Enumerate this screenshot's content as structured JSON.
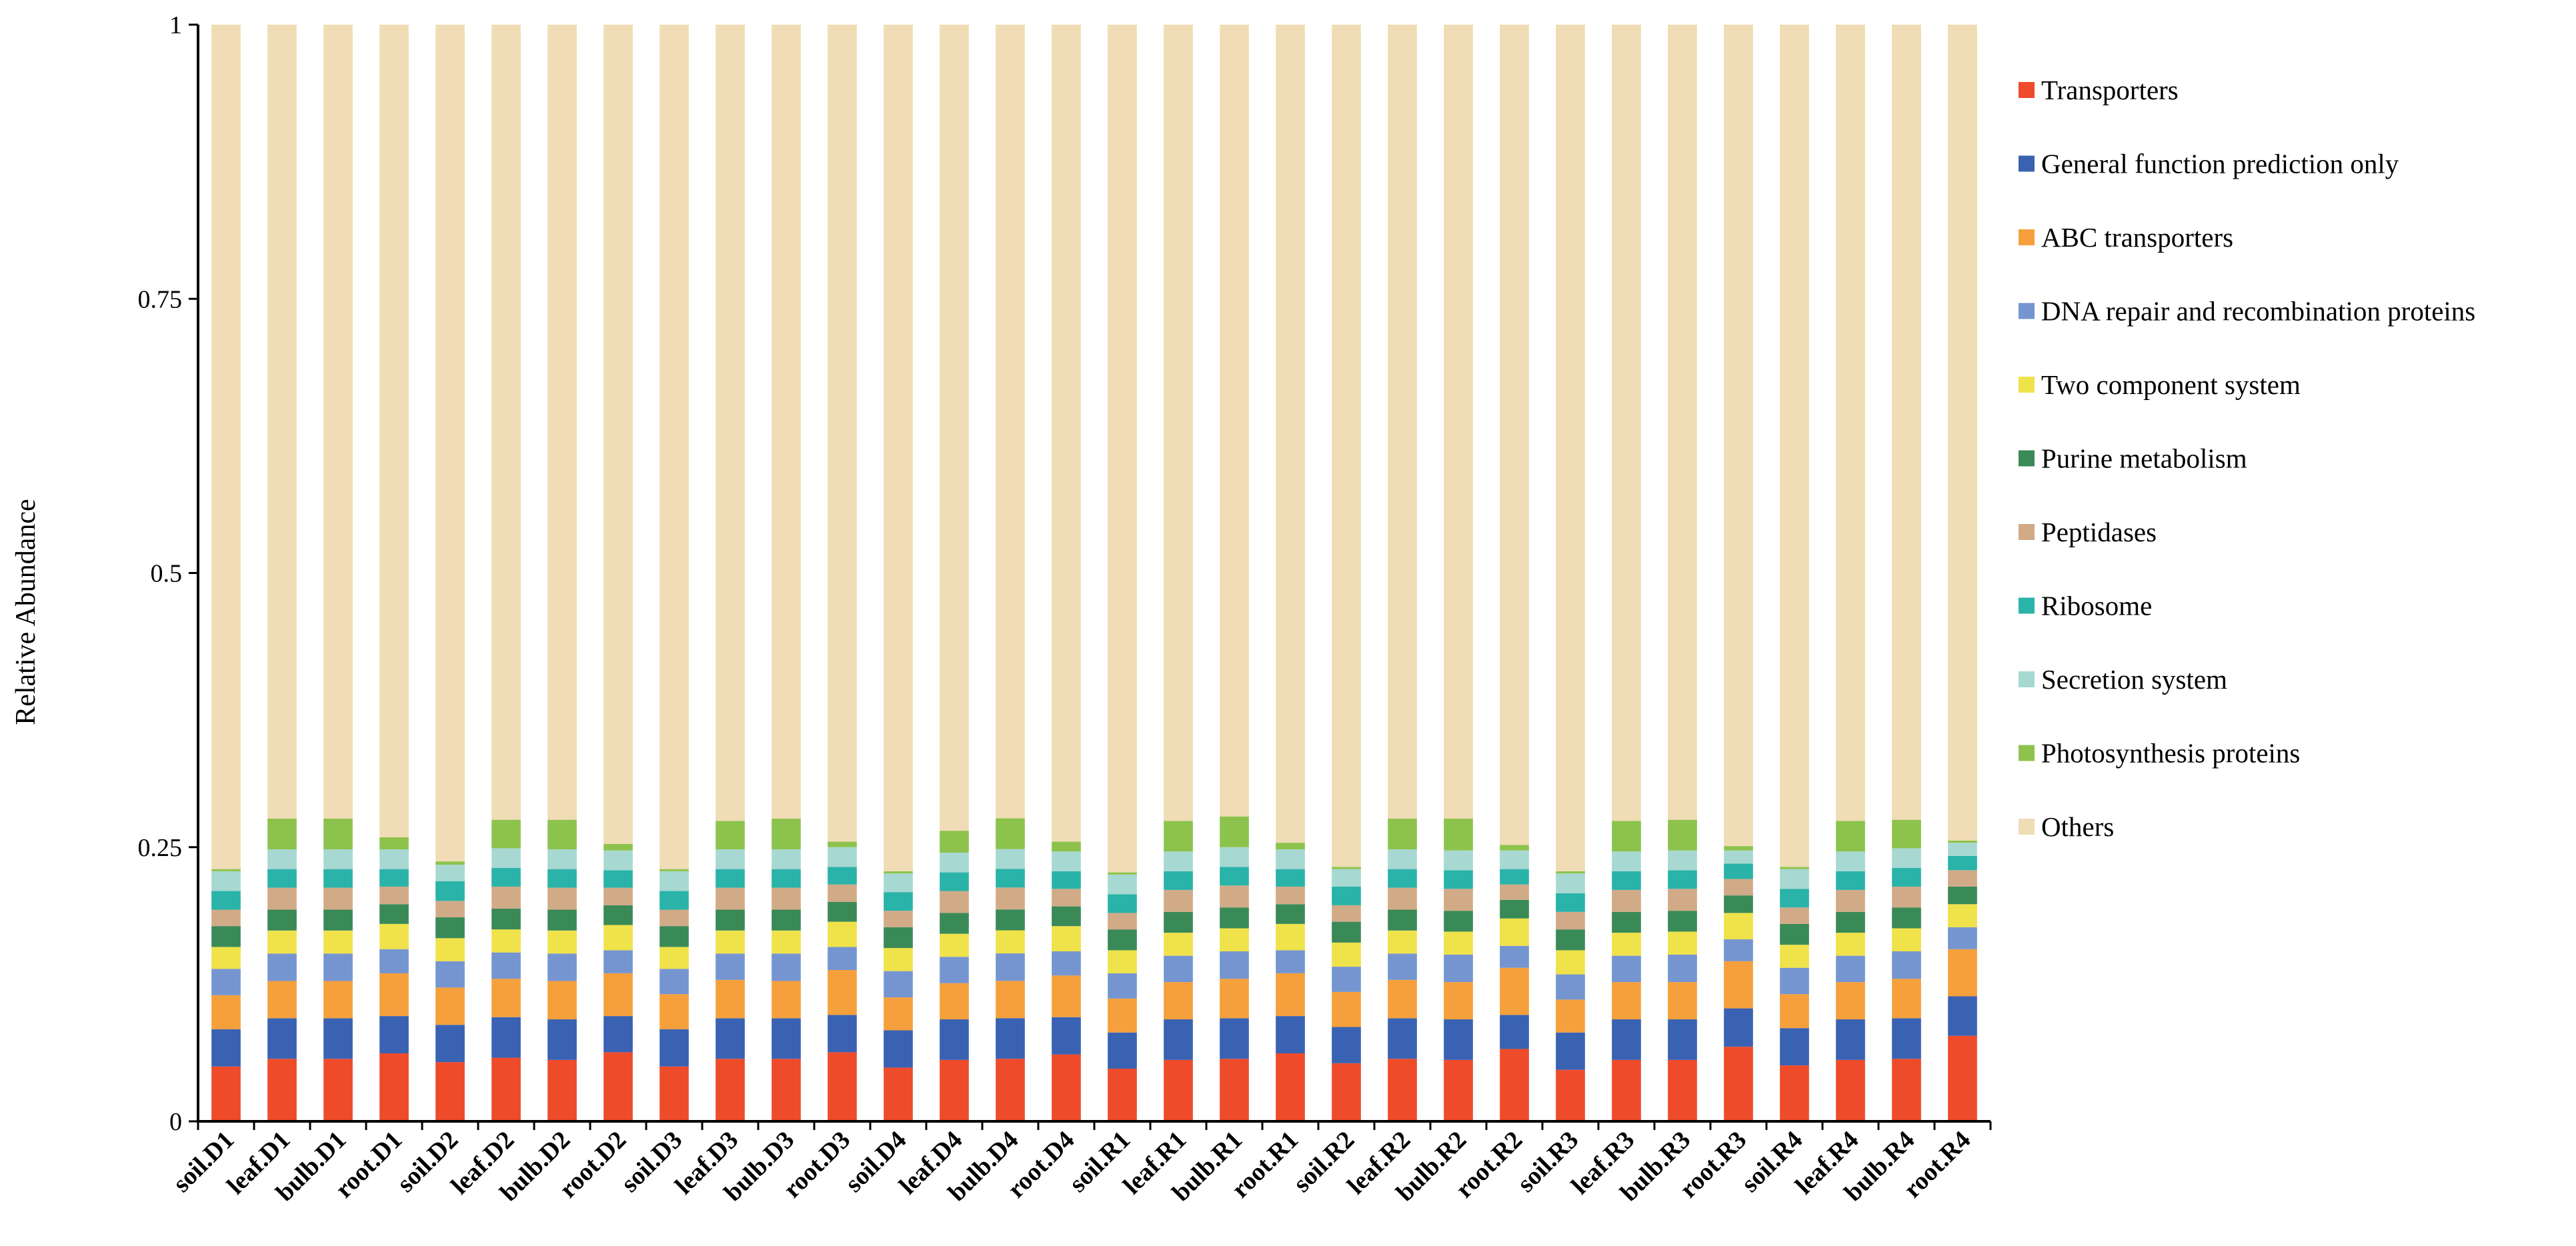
{
  "chart_data": {
    "type": "bar",
    "stacked": true,
    "ylabel": "Relative Abundance",
    "xlabel": "",
    "ylim": [
      0,
      1
    ],
    "yticks": [
      0,
      0.25,
      0.5,
      0.75,
      1
    ],
    "ytick_labels": [
      "0",
      "0.25",
      "0.5",
      "0.75",
      "1"
    ],
    "legend_position": "right",
    "categories": [
      "soil.D1",
      "leaf.D1",
      "bulb.D1",
      "root.D1",
      "soil.D2",
      "leaf.D2",
      "bulb.D2",
      "root.D2",
      "soil.D3",
      "leaf.D3",
      "bulb.D3",
      "root.D3",
      "soil.D4",
      "leaf.D4",
      "bulb.D4",
      "root.D4",
      "soil.R1",
      "leaf.R1",
      "bulb.R1",
      "root.R1",
      "soil.R2",
      "leaf.R2",
      "bulb.R2",
      "root.R2",
      "soil.R3",
      "leaf.R3",
      "bulb.R3",
      "root.R3",
      "soil.R4",
      "leaf.R4",
      "bulb.R4",
      "root.R4"
    ],
    "series": [
      {
        "name": "Transporters",
        "color": "#ee4b2b",
        "values": [
          0.05,
          0.057,
          0.057,
          0.062,
          0.054,
          0.058,
          0.056,
          0.063,
          0.05,
          0.057,
          0.057,
          0.063,
          0.049,
          0.056,
          0.057,
          0.061,
          0.048,
          0.056,
          0.057,
          0.062,
          0.053,
          0.057,
          0.056,
          0.066,
          0.047,
          0.056,
          0.056,
          0.068,
          0.051,
          0.056,
          0.057,
          0.078
        ]
      },
      {
        "name": "General function prediction only",
        "color": "#3a62b3",
        "values": [
          0.034,
          0.037,
          0.037,
          0.034,
          0.034,
          0.037,
          0.037,
          0.033,
          0.034,
          0.037,
          0.037,
          0.034,
          0.034,
          0.037,
          0.037,
          0.034,
          0.033,
          0.037,
          0.037,
          0.034,
          0.033,
          0.037,
          0.037,
          0.031,
          0.034,
          0.037,
          0.037,
          0.035,
          0.034,
          0.037,
          0.037,
          0.036
        ]
      },
      {
        "name": "ABC transporters",
        "color": "#f5a03c",
        "values": [
          0.031,
          0.034,
          0.034,
          0.039,
          0.034,
          0.035,
          0.035,
          0.039,
          0.032,
          0.035,
          0.034,
          0.041,
          0.03,
          0.033,
          0.034,
          0.038,
          0.031,
          0.034,
          0.036,
          0.039,
          0.032,
          0.035,
          0.034,
          0.043,
          0.03,
          0.034,
          0.034,
          0.043,
          0.031,
          0.034,
          0.036,
          0.043
        ]
      },
      {
        "name": "DNA repair and recombination proteins",
        "color": "#7595d0",
        "values": [
          0.024,
          0.025,
          0.025,
          0.022,
          0.024,
          0.024,
          0.025,
          0.021,
          0.023,
          0.024,
          0.025,
          0.021,
          0.024,
          0.024,
          0.025,
          0.022,
          0.023,
          0.024,
          0.025,
          0.021,
          0.023,
          0.024,
          0.025,
          0.02,
          0.023,
          0.024,
          0.025,
          0.02,
          0.024,
          0.024,
          0.025,
          0.02
        ]
      },
      {
        "name": "Two component system",
        "color": "#f0e24a",
        "values": [
          0.02,
          0.021,
          0.021,
          0.023,
          0.021,
          0.021,
          0.021,
          0.023,
          0.02,
          0.021,
          0.021,
          0.023,
          0.021,
          0.021,
          0.021,
          0.023,
          0.021,
          0.021,
          0.021,
          0.024,
          0.022,
          0.021,
          0.021,
          0.025,
          0.022,
          0.021,
          0.021,
          0.024,
          0.021,
          0.021,
          0.021,
          0.021
        ]
      },
      {
        "name": "Purine metabolism",
        "color": "#3a8a57",
        "values": [
          0.019,
          0.019,
          0.019,
          0.018,
          0.019,
          0.019,
          0.019,
          0.018,
          0.019,
          0.019,
          0.019,
          0.018,
          0.019,
          0.019,
          0.019,
          0.018,
          0.019,
          0.019,
          0.019,
          0.018,
          0.019,
          0.019,
          0.019,
          0.017,
          0.019,
          0.019,
          0.019,
          0.016,
          0.019,
          0.019,
          0.019,
          0.016
        ]
      },
      {
        "name": "Peptidases",
        "color": "#d1aa88",
        "values": [
          0.015,
          0.02,
          0.02,
          0.016,
          0.015,
          0.02,
          0.02,
          0.016,
          0.015,
          0.02,
          0.02,
          0.016,
          0.015,
          0.02,
          0.02,
          0.016,
          0.015,
          0.02,
          0.02,
          0.016,
          0.015,
          0.02,
          0.02,
          0.014,
          0.016,
          0.02,
          0.02,
          0.015,
          0.015,
          0.02,
          0.019,
          0.015
        ]
      },
      {
        "name": "Ribosome",
        "color": "#2ab3a8",
        "values": [
          0.017,
          0.017,
          0.017,
          0.016,
          0.018,
          0.017,
          0.017,
          0.016,
          0.017,
          0.017,
          0.017,
          0.016,
          0.017,
          0.017,
          0.017,
          0.016,
          0.017,
          0.017,
          0.017,
          0.016,
          0.017,
          0.017,
          0.017,
          0.014,
          0.017,
          0.017,
          0.017,
          0.014,
          0.017,
          0.017,
          0.017,
          0.013
        ]
      },
      {
        "name": "Secretion system",
        "color": "#a8d8d2",
        "values": [
          0.018,
          0.018,
          0.018,
          0.018,
          0.015,
          0.018,
          0.018,
          0.018,
          0.018,
          0.018,
          0.018,
          0.018,
          0.017,
          0.018,
          0.018,
          0.018,
          0.018,
          0.018,
          0.018,
          0.018,
          0.016,
          0.018,
          0.018,
          0.017,
          0.018,
          0.018,
          0.018,
          0.012,
          0.018,
          0.018,
          0.018,
          0.012
        ]
      },
      {
        "name": "Photosynthesis proteins",
        "color": "#8dc34d",
        "values": [
          0.002,
          0.028,
          0.028,
          0.011,
          0.003,
          0.026,
          0.027,
          0.006,
          0.002,
          0.026,
          0.028,
          0.005,
          0.002,
          0.02,
          0.028,
          0.009,
          0.002,
          0.028,
          0.028,
          0.006,
          0.002,
          0.028,
          0.029,
          0.005,
          0.002,
          0.028,
          0.028,
          0.004,
          0.002,
          0.028,
          0.026,
          0.002
        ]
      },
      {
        "name": "Others",
        "color": "#f0dcb5",
        "values": [
          0.77,
          0.724,
          0.724,
          0.741,
          0.763,
          0.725,
          0.725,
          0.747,
          0.77,
          0.726,
          0.724,
          0.745,
          0.772,
          0.735,
          0.723,
          0.745,
          0.773,
          0.726,
          0.722,
          0.746,
          0.768,
          0.724,
          0.724,
          0.748,
          0.772,
          0.726,
          0.725,
          0.749,
          0.768,
          0.726,
          0.725,
          0.744
        ]
      }
    ]
  }
}
